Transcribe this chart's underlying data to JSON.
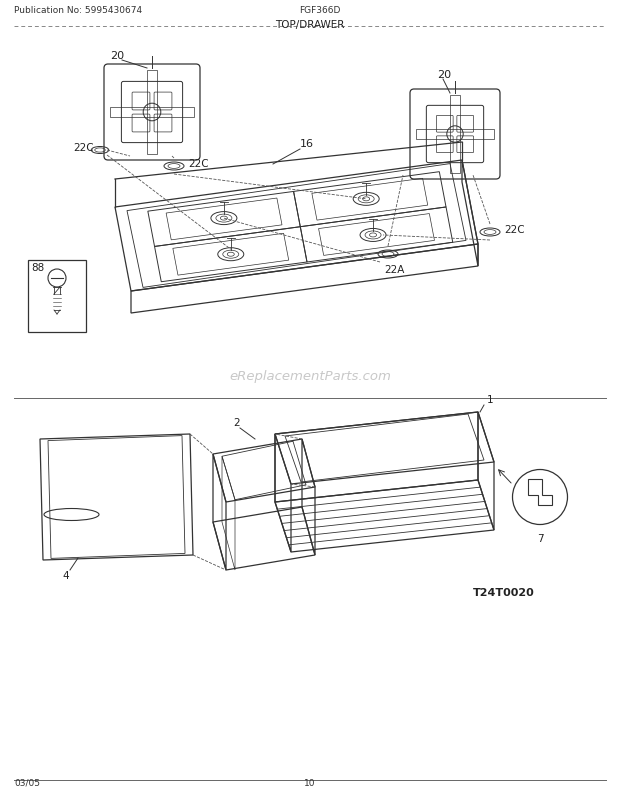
{
  "pub_no": "Publication No: 5995430674",
  "model": "FGF366D",
  "title": "TOP/DRAWER",
  "date": "03/05",
  "page": "10",
  "watermark": "eReplacementParts.com",
  "logo": "T24T0020",
  "bg": "#ffffff",
  "lc": "#333333",
  "lc2": "#555555"
}
